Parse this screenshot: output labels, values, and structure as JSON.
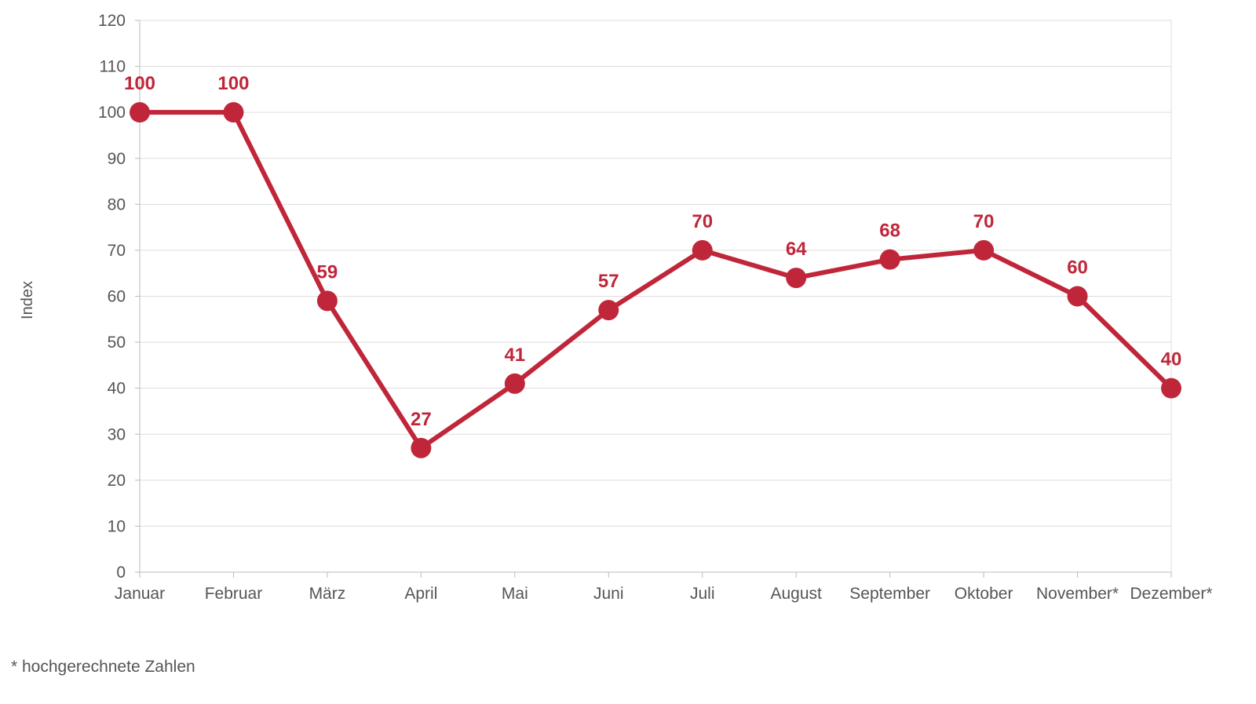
{
  "chart_data": {
    "type": "line",
    "categories": [
      "Januar",
      "Februar",
      "März",
      "April",
      "Mai",
      "Juni",
      "Juli",
      "August",
      "September",
      "Oktober",
      "November*",
      "Dezember*"
    ],
    "series": [
      {
        "values": [
          100,
          100,
          59,
          27,
          41,
          57,
          70,
          64,
          68,
          70,
          60,
          40
        ]
      }
    ],
    "data_labels": [
      "100",
      "100",
      "59",
      "27",
      "41",
      "57",
      "70",
      "64",
      "68",
      "70",
      "60",
      "40"
    ],
    "ylabel": "Index",
    "xlabel": "",
    "title": "",
    "ylim": [
      0,
      120
    ],
    "yticks": [
      0,
      10,
      20,
      30,
      40,
      50,
      60,
      70,
      80,
      90,
      100,
      110,
      120
    ],
    "grid": true,
    "legend": "none",
    "colors": {
      "series": "#c0263a",
      "grid": "#dddddd",
      "axis": "#bbbbbb",
      "text": "#555555"
    }
  },
  "footnote": "* hochgerechnete Zahlen"
}
